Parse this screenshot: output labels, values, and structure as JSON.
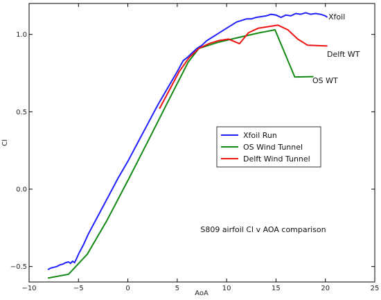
{
  "chart_data": {
    "type": "line",
    "title": "",
    "annotation": "S809 airfoil Cl v AOA comparison",
    "xlabel": "AoA",
    "ylabel": "Cl",
    "xlim": [
      -10,
      25
    ],
    "ylim": [
      -0.6,
      1.2
    ],
    "xticks": [
      -10,
      -5,
      0,
      5,
      10,
      15,
      20,
      25
    ],
    "xtick_labels": [
      "−10",
      "−5",
      "0",
      "5",
      "10",
      "15",
      "20",
      "25"
    ],
    "yticks": [
      -0.5,
      0.0,
      0.5,
      1.0
    ],
    "ytick_labels": [
      "−0.5",
      "0.0",
      "0.5",
      "1.0"
    ],
    "grid": false,
    "legend_position": "center-right",
    "series": [
      {
        "name": "Xfoil Run",
        "end_label": "Xfoil",
        "color": "#1f1fff",
        "points": [
          [
            -8.1,
            -0.52
          ],
          [
            -7.8,
            -0.51
          ],
          [
            -7.5,
            -0.505
          ],
          [
            -7.2,
            -0.5
          ],
          [
            -6.9,
            -0.49
          ],
          [
            -6.6,
            -0.485
          ],
          [
            -6.3,
            -0.475
          ],
          [
            -6.0,
            -0.47
          ],
          [
            -5.8,
            -0.48
          ],
          [
            -5.6,
            -0.465
          ],
          [
            -5.4,
            -0.475
          ],
          [
            -5.2,
            -0.45
          ],
          [
            -5.0,
            -0.42
          ],
          [
            -4.5,
            -0.36
          ],
          [
            -4.0,
            -0.29
          ],
          [
            -3.0,
            -0.17
          ],
          [
            -2.0,
            -0.05
          ],
          [
            -1.0,
            0.07
          ],
          [
            0.0,
            0.18
          ],
          [
            1.0,
            0.3
          ],
          [
            2.0,
            0.42
          ],
          [
            3.0,
            0.54
          ],
          [
            4.0,
            0.65
          ],
          [
            5.0,
            0.76
          ],
          [
            5.6,
            0.83
          ],
          [
            6.0,
            0.85
          ],
          [
            6.5,
            0.88
          ],
          [
            7.0,
            0.91
          ],
          [
            7.5,
            0.93
          ],
          [
            8.0,
            0.96
          ],
          [
            8.5,
            0.98
          ],
          [
            9.0,
            1.0
          ],
          [
            9.5,
            1.02
          ],
          [
            10.0,
            1.04
          ],
          [
            10.5,
            1.06
          ],
          [
            11.0,
            1.08
          ],
          [
            11.5,
            1.09
          ],
          [
            12.0,
            1.1
          ],
          [
            12.5,
            1.1
          ],
          [
            13.0,
            1.11
          ],
          [
            13.5,
            1.115
          ],
          [
            14.0,
            1.12
          ],
          [
            14.5,
            1.13
          ],
          [
            15.0,
            1.125
          ],
          [
            15.5,
            1.11
          ],
          [
            16.0,
            1.125
          ],
          [
            16.5,
            1.12
          ],
          [
            17.0,
            1.135
          ],
          [
            17.5,
            1.13
          ],
          [
            18.0,
            1.14
          ],
          [
            18.5,
            1.13
          ],
          [
            19.0,
            1.135
          ],
          [
            19.5,
            1.13
          ],
          [
            20.0,
            1.12
          ],
          [
            20.2,
            1.11
          ]
        ]
      },
      {
        "name": "OS Wind Tunnel",
        "end_label": "OS WT",
        "color": "#118811",
        "points": [
          [
            -8.1,
            -0.575
          ],
          [
            -6.0,
            -0.55
          ],
          [
            -4.1,
            -0.42
          ],
          [
            -2.1,
            -0.2
          ],
          [
            0.2,
            0.08
          ],
          [
            2.2,
            0.33
          ],
          [
            4.1,
            0.57
          ],
          [
            6.1,
            0.82
          ],
          [
            7.2,
            0.91
          ],
          [
            9.2,
            0.95
          ],
          [
            11.2,
            0.98
          ],
          [
            13.3,
            1.01
          ],
          [
            14.9,
            1.03
          ],
          [
            16.9,
            0.725
          ],
          [
            18.8,
            0.727
          ]
        ]
      },
      {
        "name": "Delft Wind Tunnel",
        "end_label": "Delft WT",
        "color": "#ee1111",
        "points": [
          [
            3.2,
            0.52
          ],
          [
            4.2,
            0.64
          ],
          [
            5.2,
            0.76
          ],
          [
            6.2,
            0.85
          ],
          [
            7.2,
            0.91
          ],
          [
            8.2,
            0.94
          ],
          [
            9.2,
            0.96
          ],
          [
            10.2,
            0.97
          ],
          [
            11.3,
            0.94
          ],
          [
            12.2,
            1.01
          ],
          [
            13.2,
            1.04
          ],
          [
            14.2,
            1.05
          ],
          [
            15.2,
            1.06
          ],
          [
            16.2,
            1.03
          ],
          [
            17.2,
            0.97
          ],
          [
            18.2,
            0.93
          ],
          [
            20.2,
            0.925
          ]
        ]
      }
    ]
  }
}
